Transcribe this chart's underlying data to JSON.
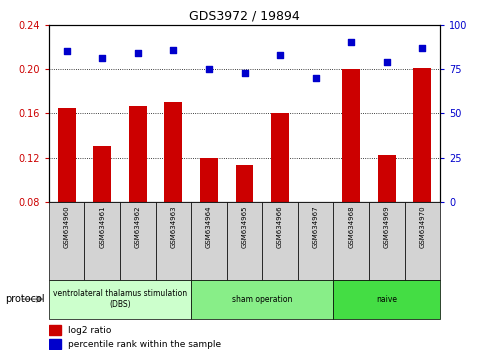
{
  "title": "GDS3972 / 19894",
  "samples": [
    "GSM634960",
    "GSM634961",
    "GSM634962",
    "GSM634963",
    "GSM634964",
    "GSM634965",
    "GSM634966",
    "GSM634967",
    "GSM634968",
    "GSM634969",
    "GSM634970"
  ],
  "log2_ratio": [
    0.165,
    0.13,
    0.167,
    0.17,
    0.12,
    0.113,
    0.16,
    0.08,
    0.2,
    0.122,
    0.201
  ],
  "percentile_rank": [
    85,
    81,
    84,
    86,
    75,
    73,
    83,
    70,
    90,
    79,
    87
  ],
  "groups": [
    {
      "label": "ventrolateral thalamus stimulation\n(DBS)",
      "start": 0,
      "end": 3,
      "color": "#CCFFCC"
    },
    {
      "label": "sham operation",
      "start": 4,
      "end": 7,
      "color": "#88EE88"
    },
    {
      "label": "naive",
      "start": 8,
      "end": 10,
      "color": "#44DD44"
    }
  ],
  "bar_color": "#CC0000",
  "dot_color": "#0000CC",
  "ylim_left": [
    0.08,
    0.24
  ],
  "ylim_right": [
    0,
    100
  ],
  "yticks_left": [
    0.08,
    0.12,
    0.16,
    0.2,
    0.24
  ],
  "yticks_right": [
    0,
    25,
    50,
    75,
    100
  ],
  "bg_color": "#FFFFFF",
  "plot_bg": "#FFFFFF",
  "tick_label_color_left": "#CC0000",
  "tick_label_color_right": "#0000CC",
  "sample_box_color": "#D3D3D3",
  "legend_red_label": "log2 ratio",
  "legend_blue_label": "percentile rank within the sample",
  "protocol_text": "protocol"
}
